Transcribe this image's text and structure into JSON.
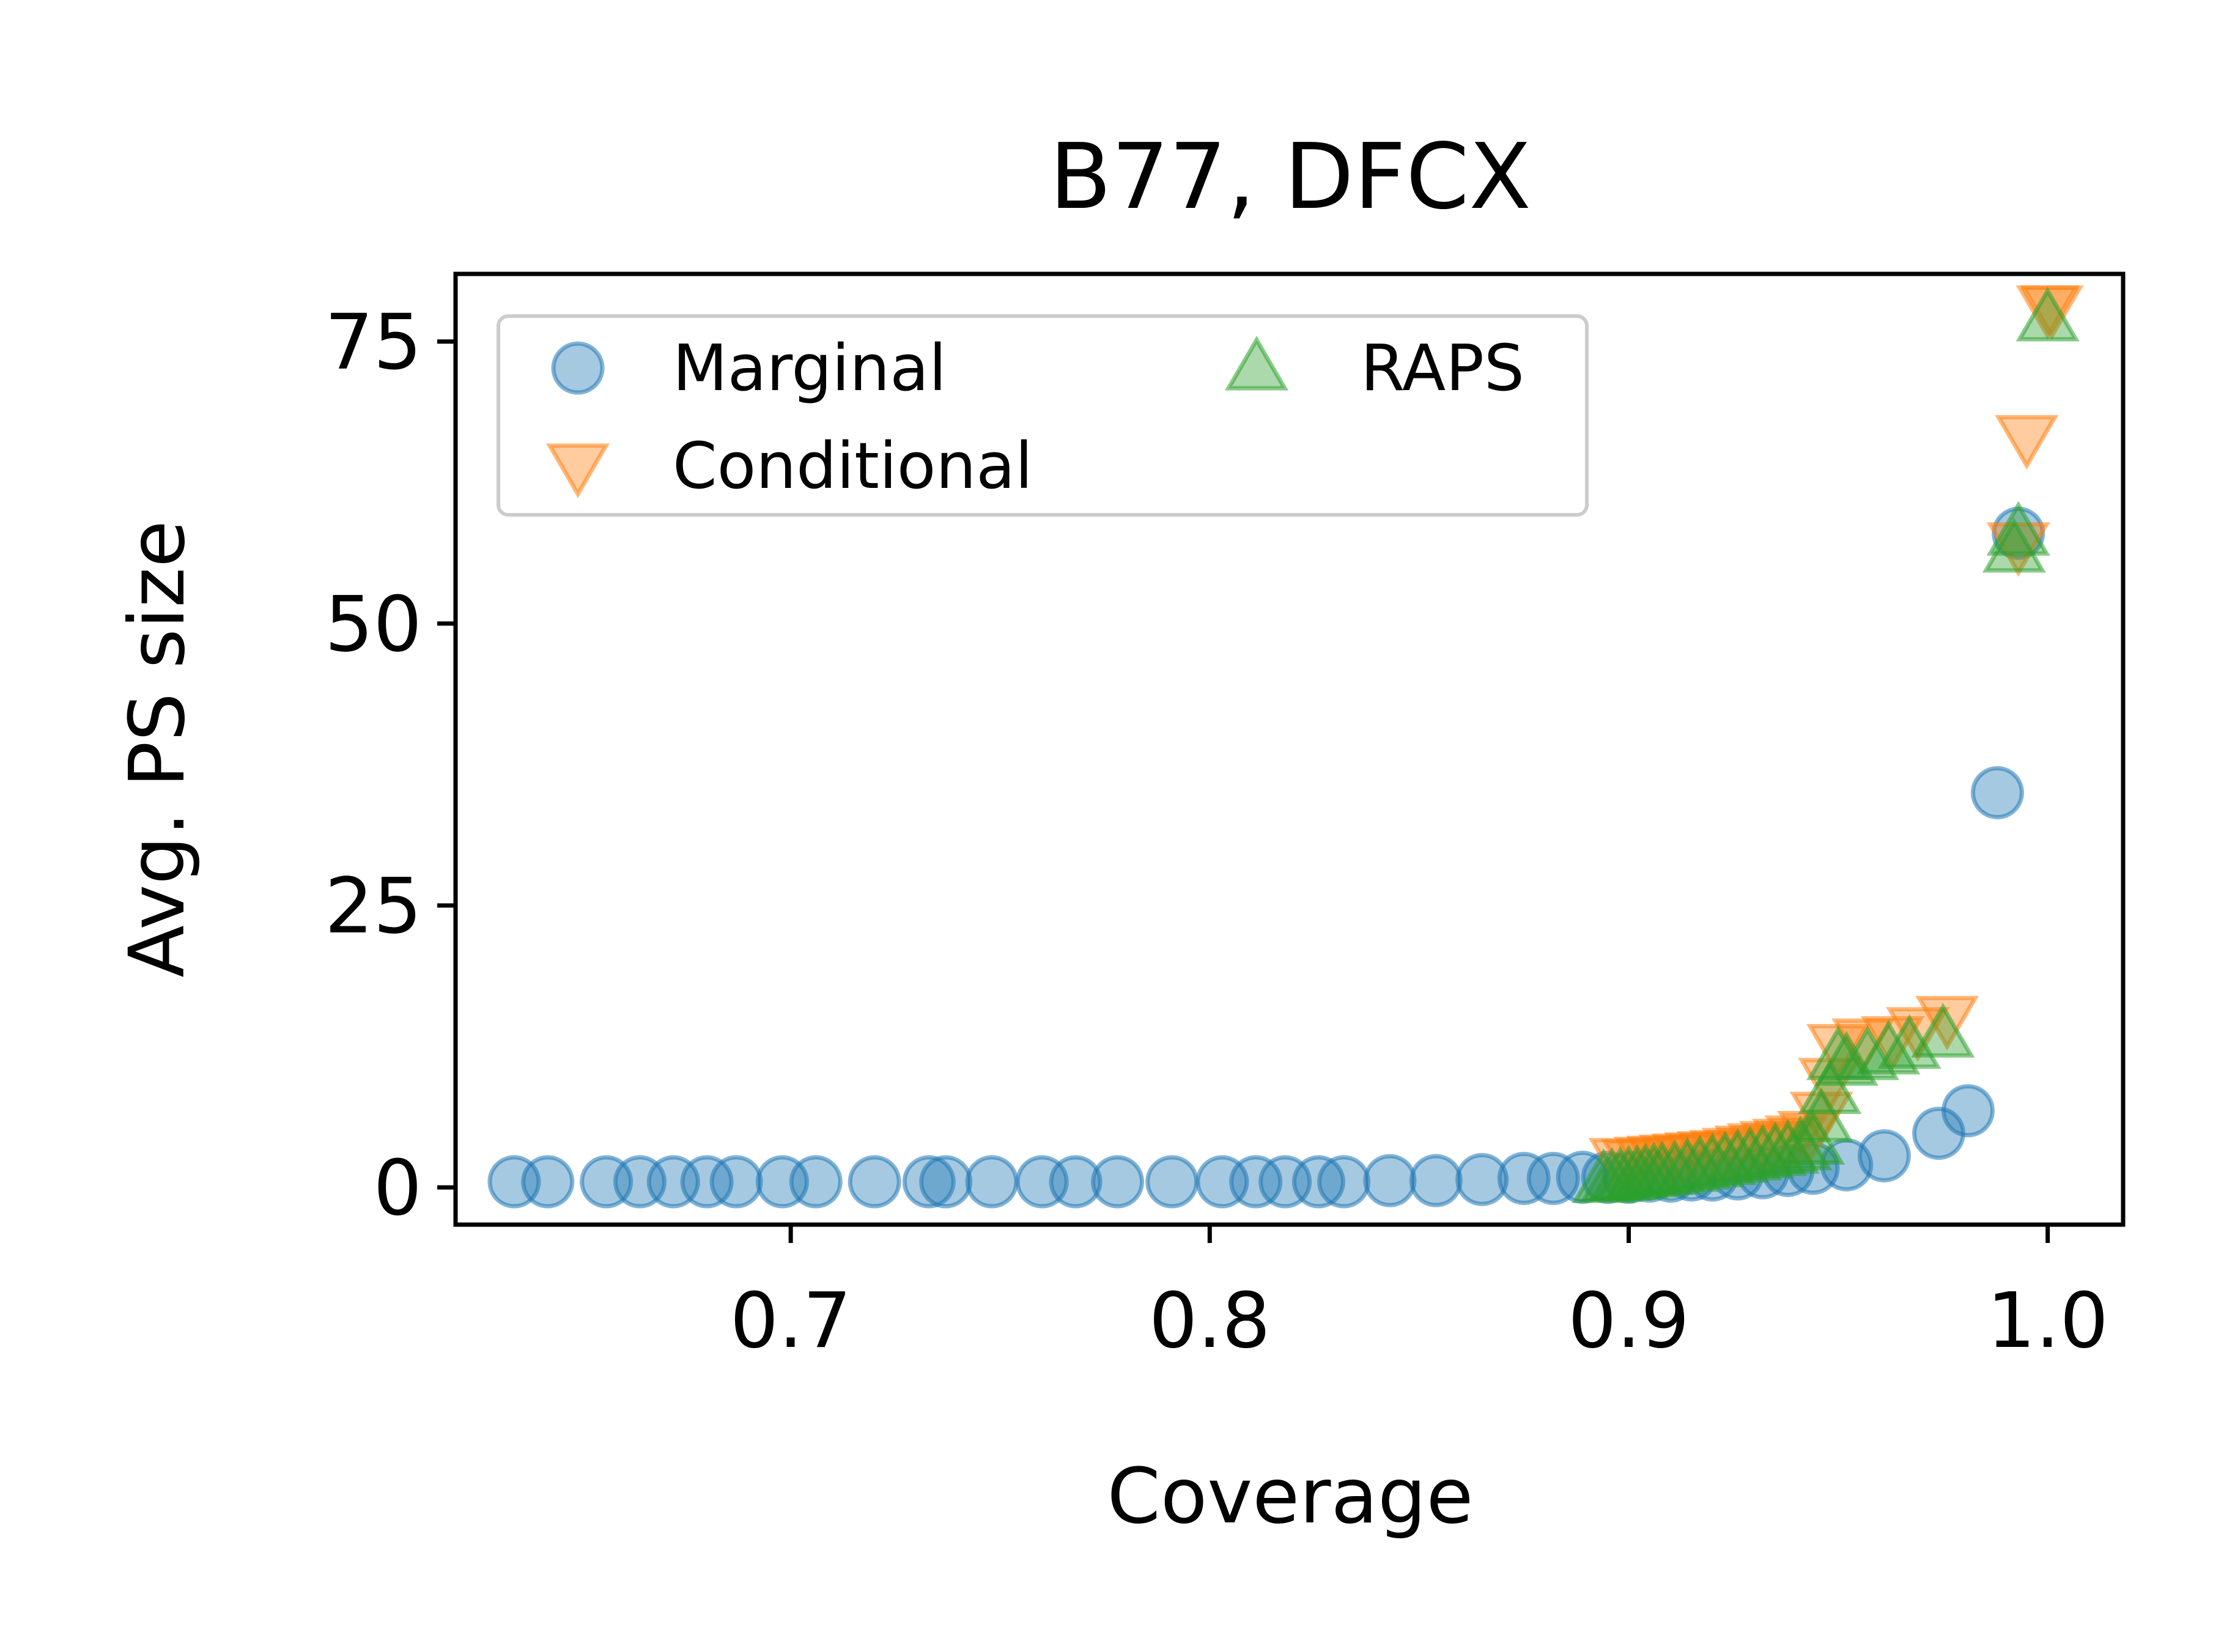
{
  "chart_data": {
    "type": "scatter",
    "title": "B77, DFCX",
    "xlabel": "Coverage",
    "ylabel": "Avg. PS size",
    "xlim": [
      0.62,
      1.018
    ],
    "ylim": [
      -3.3,
      81.0
    ],
    "xticks": [
      0.7,
      0.8,
      0.9,
      1.0
    ],
    "xtick_labels": [
      "0.7",
      "0.8",
      "0.9",
      "1.0"
    ],
    "yticks": [
      0,
      25,
      50,
      75
    ],
    "ytick_labels": [
      "0",
      "25",
      "50",
      "75"
    ],
    "grid": false,
    "legend": {
      "position": "top-left",
      "columns": 2
    },
    "series": [
      {
        "name": "Marginal",
        "marker": "circle",
        "color": "#1f77b4",
        "x": [
          0.634,
          0.642,
          0.656,
          0.664,
          0.672,
          0.68,
          0.687,
          0.698,
          0.706,
          0.72,
          0.733,
          0.737,
          0.748,
          0.76,
          0.768,
          0.778,
          0.791,
          0.803,
          0.811,
          0.818,
          0.826,
          0.832,
          0.843,
          0.854,
          0.865,
          0.875,
          0.882,
          0.889,
          0.895,
          0.9,
          0.905,
          0.91,
          0.915,
          0.92,
          0.926,
          0.932,
          0.938,
          0.944,
          0.952,
          0.961,
          0.974,
          0.981,
          0.988,
          0.993
        ],
        "y": [
          0.5,
          0.5,
          0.5,
          0.5,
          0.5,
          0.5,
          0.5,
          0.5,
          0.5,
          0.5,
          0.5,
          0.5,
          0.5,
          0.5,
          0.5,
          0.5,
          0.5,
          0.5,
          0.5,
          0.5,
          0.5,
          0.5,
          0.6,
          0.6,
          0.7,
          0.8,
          0.8,
          0.9,
          0.9,
          0.9,
          1.0,
          1.0,
          1.1,
          1.1,
          1.2,
          1.3,
          1.5,
          1.7,
          2.0,
          2.8,
          4.8,
          6.8,
          35.0,
          58.0
        ]
      },
      {
        "name": "Conditional",
        "marker": "triangle-down",
        "color": "#ff7f0e",
        "x": [
          0.898,
          0.901,
          0.904,
          0.907,
          0.91,
          0.913,
          0.916,
          0.919,
          0.922,
          0.925,
          0.928,
          0.931,
          0.934,
          0.937,
          0.94,
          0.943,
          0.946,
          0.948,
          0.95,
          0.956,
          0.963,
          0.969,
          0.976,
          0.993,
          0.995,
          1.0,
          1.001
        ],
        "y": [
          2.4,
          2.3,
          2.5,
          2.6,
          2.7,
          2.8,
          2.9,
          3.0,
          3.1,
          3.3,
          3.5,
          3.7,
          3.9,
          4.1,
          4.4,
          4.8,
          6.5,
          9.5,
          12.5,
          13.0,
          13.2,
          14.0,
          15.0,
          57.0,
          66.5,
          78.0,
          78.0
        ]
      },
      {
        "name": "RAPS",
        "marker": "triangle-up",
        "color": "#2ca02c",
        "x": [
          0.894,
          0.896,
          0.898,
          0.9,
          0.902,
          0.904,
          0.906,
          0.908,
          0.911,
          0.914,
          0.917,
          0.92,
          0.923,
          0.926,
          0.929,
          0.932,
          0.935,
          0.938,
          0.941,
          0.944,
          0.946,
          0.948,
          0.95,
          0.952,
          0.957,
          0.962,
          0.967,
          0.975,
          0.992,
          0.993,
          1.0
        ],
        "y": [
          0.6,
          0.7,
          0.8,
          0.9,
          1.0,
          1.1,
          1.2,
          1.3,
          1.4,
          1.6,
          1.8,
          2.0,
          2.2,
          2.4,
          2.6,
          2.8,
          3.0,
          3.2,
          3.5,
          4.0,
          6.0,
          8.5,
          11.5,
          11.0,
          11.5,
          12.0,
          12.5,
          13.5,
          56.5,
          58.0,
          77.0
        ]
      }
    ]
  }
}
